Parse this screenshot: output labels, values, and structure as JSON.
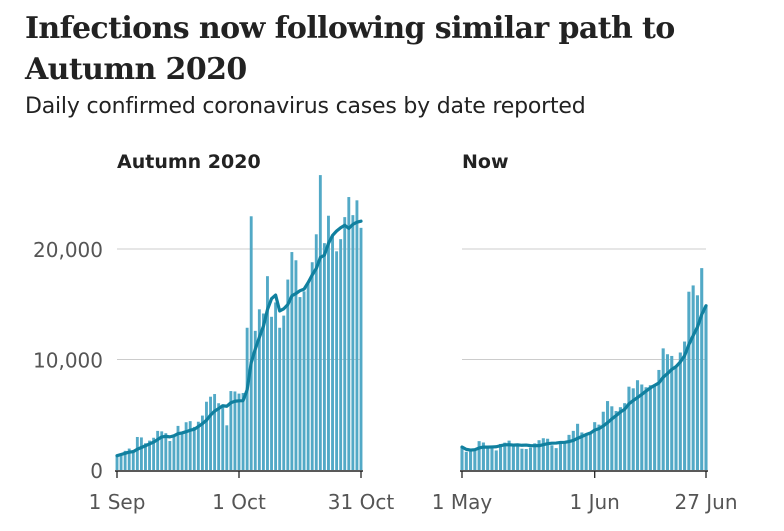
{
  "title": "Infections now following similar path to Autumn 2020",
  "subtitle": "Daily confirmed coronavirus cases by date reported",
  "colors": {
    "bar": "#52a9c6",
    "line": "#11809f",
    "grid": "#cccccc",
    "axis": "#222222"
  },
  "chart_data": [
    {
      "type": "bar",
      "title": "Autumn 2020",
      "ylabel": "",
      "xlabel": "",
      "ylim": [
        0,
        27000
      ],
      "yticks": [
        {
          "value": 0,
          "label": "0"
        },
        {
          "value": 10000,
          "label": "10,000"
        },
        {
          "value": 20000,
          "label": "20,000"
        }
      ],
      "xticks": [
        {
          "index": 0,
          "label": "1 Sep"
        },
        {
          "index": 30,
          "label": "1 Oct"
        },
        {
          "index": 60,
          "label": "31 Oct"
        }
      ],
      "overlay": "7-day average line",
      "values": [
        1295,
        1508,
        1735,
        1940,
        1813,
        2988,
        2948,
        2420,
        2659,
        2919,
        3539,
        3497,
        3330,
        2621,
        3105,
        3991,
        3395,
        4322,
        4422,
        3899,
        4368,
        4926,
        6178,
        6634,
        6874,
        6042,
        5693,
        4044,
        7143,
        7108,
        6914,
        6968,
        12872,
        22961,
        12594,
        14542,
        14162,
        17540,
        13864,
        15166,
        12872,
        13972,
        17234,
        19724,
        18980,
        15650,
        16171,
        16982,
        18804,
        21331,
        26688,
        20530,
        23012,
        21242,
        19790,
        20890,
        22885,
        24701,
        23065,
        24405,
        21915
      ]
    },
    {
      "type": "bar",
      "title": "Now",
      "ylabel": "",
      "xlabel": "",
      "ylim": [
        0,
        27000
      ],
      "yticks": [
        {
          "value": 0,
          "label": ""
        },
        {
          "value": 10000,
          "label": ""
        },
        {
          "value": 20000,
          "label": ""
        }
      ],
      "xticks": [
        {
          "index": 0,
          "label": "1 May"
        },
        {
          "index": 31,
          "label": "1 Jun"
        },
        {
          "index": 57,
          "label": "27 Jun"
        }
      ],
      "overlay": "7-day average line",
      "values": [
        2082,
        1649,
        1671,
        1946,
        2613,
        2490,
        2047,
        2193,
        1770,
        2357,
        2474,
        2657,
        2284,
        2193,
        1926,
        1898,
        2027,
        2412,
        2696,
        2874,
        2829,
        2235,
        1979,
        2439,
        2493,
        3180,
        3542,
        4182,
        3398,
        3240,
        3383,
        4330,
        4107,
        5274,
        6238,
        5765,
        5341,
        5683,
        6048,
        7540,
        7393,
        8125,
        7738,
        7490,
        7673,
        7673,
        9055,
        11007,
        10476,
        10321,
        9284,
        10633,
        11625,
        16135,
        16703,
        15810,
        18270,
        14876
      ]
    }
  ]
}
